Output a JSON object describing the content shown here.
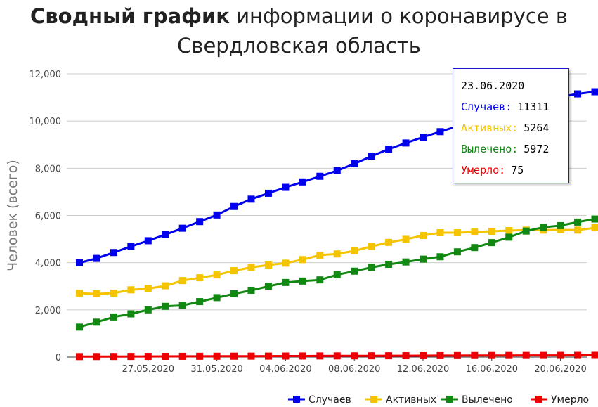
{
  "title": {
    "bold": "Сводный график",
    "rest": "информации о коронавирусе в",
    "line2": "Свердловская область"
  },
  "colors": {
    "cases": "#0000ee",
    "active": "#f5c400",
    "recovered": "#118811",
    "deaths": "#ee0000",
    "grid": "#cccccc",
    "axis": "#333333"
  },
  "tooltip": {
    "date": "23.06.2020",
    "rows": [
      {
        "label": "Случаев:",
        "value": "11311",
        "color": "#0000ee"
      },
      {
        "label": "Активных:",
        "value": "5264",
        "color": "#f5c400"
      },
      {
        "label": "Вылечено:",
        "value": "5972",
        "color": "#118811"
      },
      {
        "label": "Умерло:",
        "value": "75",
        "color": "#ee0000"
      }
    ]
  },
  "legend": [
    "Случаев",
    "Активных",
    "Вылечено",
    "Умерло"
  ],
  "chart_data": {
    "type": "line",
    "ylabel": "Человек (всего)",
    "xlabel": "",
    "ylim": [
      0,
      12000
    ],
    "yticks": [
      0,
      2000,
      4000,
      6000,
      8000,
      10000,
      12000
    ],
    "ytick_labels": [
      "0",
      "2,000",
      "4,000",
      "6,000",
      "8,000",
      "10,000",
      "12,000"
    ],
    "xtick_labels": [
      "27.05.2020",
      "31.05.2020",
      "04.06.2020",
      "08.06.2020",
      "12.06.2020",
      "16.06.2020",
      "20.06.2020"
    ],
    "x": [
      "23.05.2020",
      "24.05.2020",
      "25.05.2020",
      "26.05.2020",
      "27.05.2020",
      "28.05.2020",
      "29.05.2020",
      "30.05.2020",
      "31.05.2020",
      "01.06.2020",
      "02.06.2020",
      "03.06.2020",
      "04.06.2020",
      "05.06.2020",
      "06.06.2020",
      "07.06.2020",
      "08.06.2020",
      "09.06.2020",
      "10.06.2020",
      "11.06.2020",
      "12.06.2020",
      "13.06.2020",
      "14.06.2020",
      "15.06.2020",
      "16.06.2020",
      "17.06.2020",
      "18.06.2020",
      "19.06.2020",
      "20.06.2020",
      "21.06.2020",
      "22.06.2020",
      "23.06.2020"
    ],
    "grid": true,
    "legend_position": "bottom-right",
    "series": [
      {
        "name": "Случаев",
        "values": [
          3990,
          4180,
          4430,
          4690,
          4930,
          5190,
          5460,
          5740,
          6020,
          6380,
          6690,
          6940,
          7190,
          7420,
          7660,
          7900,
          8190,
          8510,
          8810,
          9070,
          9320,
          9550,
          9780,
          9960,
          10180,
          10400,
          10620,
          10850,
          11020,
          11150,
          11240,
          11311
        ]
      },
      {
        "name": "Активных",
        "values": [
          2700,
          2680,
          2710,
          2850,
          2900,
          3020,
          3240,
          3360,
          3480,
          3660,
          3800,
          3900,
          3980,
          4130,
          4320,
          4370,
          4500,
          4690,
          4860,
          4990,
          5150,
          5270,
          5270,
          5300,
          5330,
          5360,
          5380,
          5380,
          5390,
          5380,
          5480,
          5264
        ]
      },
      {
        "name": "Вылечено",
        "values": [
          1270,
          1480,
          1700,
          1830,
          2000,
          2150,
          2190,
          2350,
          2520,
          2680,
          2830,
          3000,
          3160,
          3220,
          3270,
          3490,
          3640,
          3800,
          3930,
          4030,
          4150,
          4250,
          4460,
          4640,
          4850,
          5080,
          5340,
          5500,
          5570,
          5720,
          5850,
          5972
        ]
      },
      {
        "name": "Умерло",
        "values": [
          20,
          22,
          24,
          26,
          28,
          30,
          32,
          34,
          36,
          38,
          40,
          42,
          44,
          46,
          48,
          50,
          52,
          54,
          56,
          58,
          60,
          62,
          64,
          66,
          68,
          69,
          70,
          71,
          72,
          73,
          74,
          75
        ]
      }
    ]
  }
}
